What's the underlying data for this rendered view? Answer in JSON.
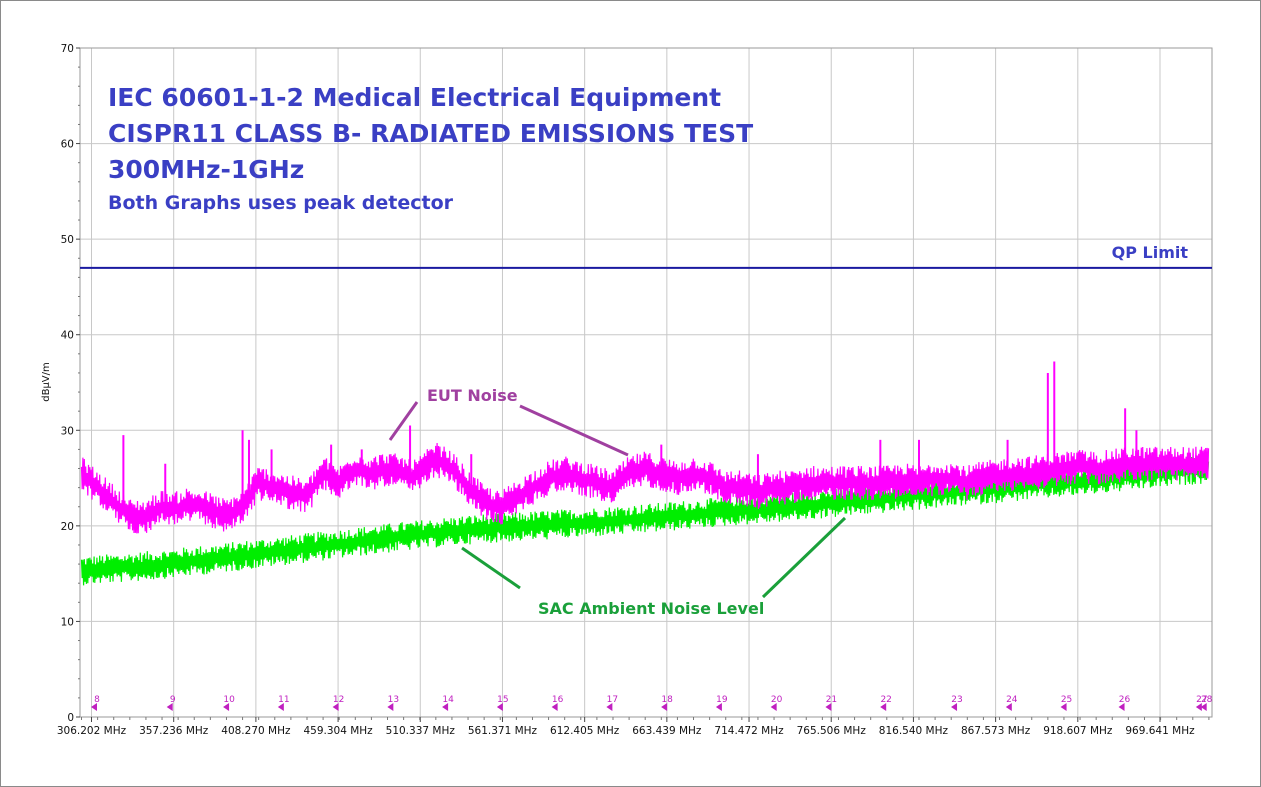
{
  "chart_data": {
    "type": "line",
    "title_lines": [
      "IEC 60601-1-2 Medical Electrical Equipment",
      "CISPR11 CLASS B- RADIATED EMISSIONS TEST",
      "300MHz-1GHz"
    ],
    "subtitle": "Both Graphs uses peak detector",
    "ylabel": "dBµV/m",
    "ylim": [
      0,
      70
    ],
    "yticks": [
      0,
      10,
      20,
      30,
      40,
      50,
      60,
      70
    ],
    "xlim": [
      300,
      1000
    ],
    "xticks": [
      306.202,
      357.236,
      408.27,
      459.304,
      510.337,
      561.371,
      612.405,
      663.439,
      714.472,
      765.506,
      816.54,
      867.573,
      918.607,
      969.641
    ],
    "xtick_labels": [
      "306.202 MHz",
      "357.236 MHz",
      "408.270 MHz",
      "459.304 MHz",
      "510.337 MHz",
      "561.371 MHz",
      "612.405 MHz",
      "663.439 MHz",
      "714.472 MHz",
      "765.506 MHz",
      "816.540 MHz",
      "867.573 MHz",
      "918.607 MHz",
      "969.641 MHz"
    ],
    "grid": true,
    "limit": {
      "name": "QP Limit",
      "value": 47,
      "color": "#1a1aa0"
    },
    "series": [
      {
        "name": "EUT Noise",
        "color": "#ff00ff",
        "x": [
          300,
          310,
          320,
          330,
          340,
          350,
          360,
          365,
          375,
          390,
          400,
          410,
          420,
          430,
          440,
          450,
          460,
          470,
          480,
          490,
          500,
          505,
          510,
          520,
          530,
          540,
          550,
          560,
          570,
          580,
          590,
          600,
          610,
          620,
          630,
          640,
          650,
          660,
          670,
          680,
          690,
          700,
          710,
          720,
          730,
          740,
          750,
          760,
          770,
          780,
          790,
          800,
          810,
          820,
          830,
          840,
          850,
          860,
          870,
          880,
          890,
          900,
          910,
          920,
          930,
          940,
          950,
          960,
          970,
          980,
          990,
          1000
        ],
        "y": [
          25.5,
          24,
          22.5,
          21,
          21,
          22,
          21.8,
          22.2,
          22,
          21,
          22,
          24.5,
          24,
          23.5,
          23,
          25.5,
          24.5,
          26,
          25.5,
          26,
          25.5,
          25,
          25.5,
          27,
          26,
          24,
          22.5,
          21.8,
          23,
          24,
          25,
          25.5,
          25,
          24.5,
          24,
          25.5,
          26,
          25.5,
          25,
          25.5,
          25,
          24,
          24,
          23.5,
          24,
          24,
          24.5,
          24.5,
          24.5,
          24.5,
          24.5,
          24.5,
          24.8,
          24.5,
          25,
          25,
          24.5,
          25,
          25.2,
          25.5,
          25.5,
          25.8,
          26,
          26.2,
          26,
          26.2,
          26.5,
          26.5,
          26.5,
          26.5,
          26.5,
          26.5
        ],
        "spikes": [
          {
            "x": 326,
            "y": 29.5
          },
          {
            "x": 352,
            "y": 26.5
          },
          {
            "x": 400,
            "y": 30
          },
          {
            "x": 404,
            "y": 29
          },
          {
            "x": 418,
            "y": 28
          },
          {
            "x": 455,
            "y": 28.5
          },
          {
            "x": 474,
            "y": 28
          },
          {
            "x": 504,
            "y": 30.5
          },
          {
            "x": 542,
            "y": 27.5
          },
          {
            "x": 660,
            "y": 28.5
          },
          {
            "x": 720,
            "y": 27.5
          },
          {
            "x": 796,
            "y": 29
          },
          {
            "x": 820,
            "y": 29
          },
          {
            "x": 875,
            "y": 29
          },
          {
            "x": 900,
            "y": 36
          },
          {
            "x": 904,
            "y": 37.2
          },
          {
            "x": 948,
            "y": 32.3
          },
          {
            "x": 955,
            "y": 30
          }
        ]
      },
      {
        "name": "SAC Ambient Noise Level",
        "color": "#00ee00",
        "x": [
          300,
          340,
          380,
          420,
          460,
          500,
          540,
          580,
          620,
          660,
          700,
          740,
          780,
          820,
          860,
          900,
          940,
          980,
          1000
        ],
        "y": [
          15.3,
          15.8,
          16.5,
          17.3,
          18.1,
          18.9,
          19.6,
          20.0,
          20.4,
          20.9,
          21.5,
          22.0,
          22.6,
          23.2,
          23.8,
          24.4,
          25.0,
          25.7,
          26.0
        ]
      }
    ],
    "markers": {
      "labels": [
        "8",
        "9",
        "10",
        "11",
        "12",
        "13",
        "14",
        "15",
        "16",
        "17",
        "18",
        "19",
        "20",
        "21",
        "22",
        "23",
        "24",
        "25",
        "26",
        "27",
        "28"
      ],
      "x": [
        309,
        356,
        391,
        425,
        459,
        493,
        527,
        561,
        595,
        629,
        663,
        697,
        731,
        765,
        799,
        843,
        877,
        911,
        947,
        995,
        998
      ]
    },
    "annotations": [
      {
        "text": "EUT Noise",
        "color": "#a040a0"
      },
      {
        "text": "SAC Ambient Noise Level",
        "color": "#1aa03a"
      }
    ]
  }
}
